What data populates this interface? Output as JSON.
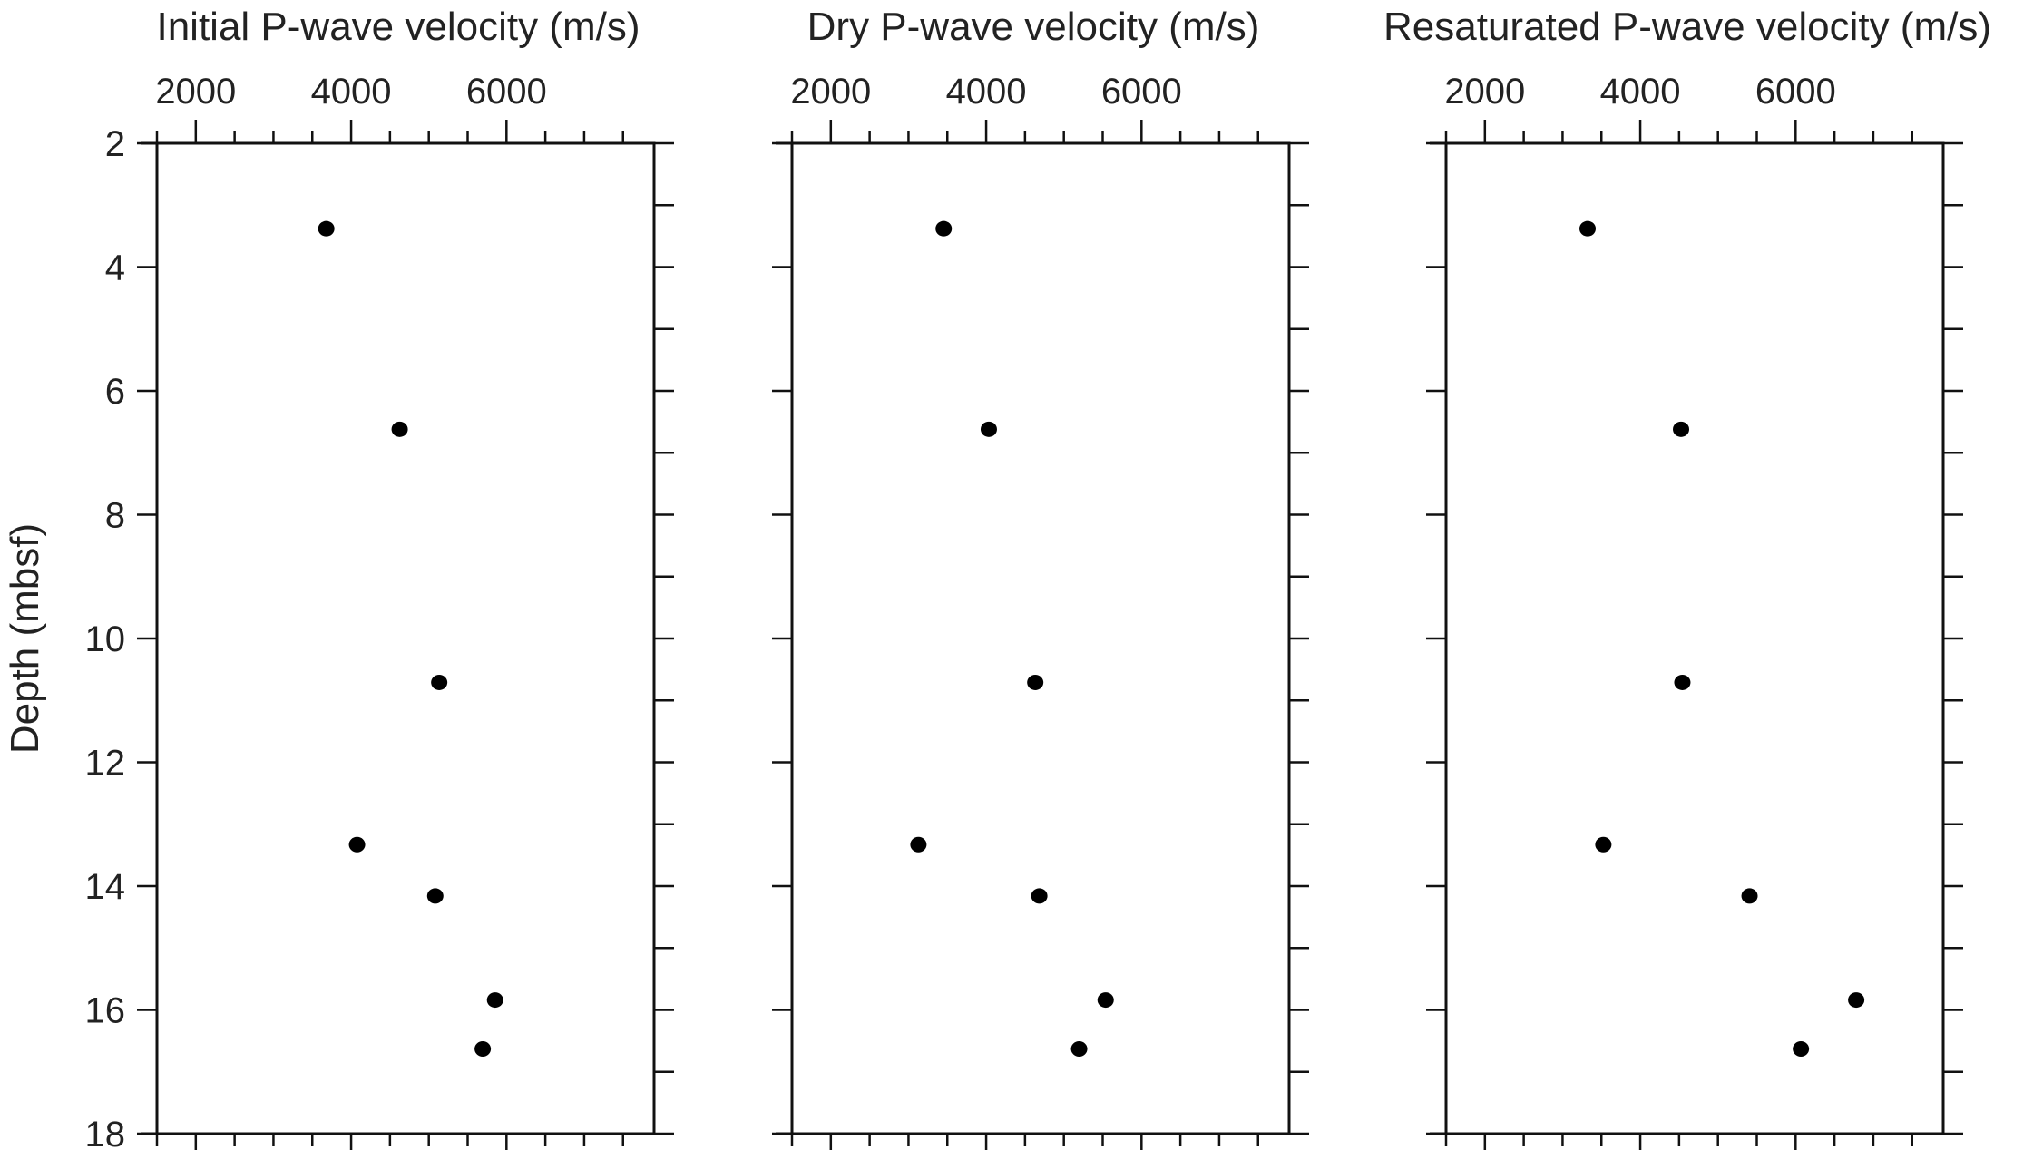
{
  "chart_data": [
    {
      "type": "scatter",
      "title": "Initial P-wave velocity (m/s)",
      "xlabel": "Initial P-wave velocity (m/s)",
      "ylabel": "Depth (mbsf)",
      "xlim": [
        1500,
        7900
      ],
      "ylim": [
        2,
        18
      ],
      "y_inverted": true,
      "x_axis_position": "top",
      "xticks": [
        2000,
        4000,
        6000
      ],
      "yticks": [
        2,
        4,
        6,
        8,
        10,
        12,
        14,
        16,
        18
      ],
      "points": [
        {
          "x": 3680,
          "y": 3.38
        },
        {
          "x": 4625,
          "y": 6.62
        },
        {
          "x": 5134,
          "y": 10.71
        },
        {
          "x": 4076,
          "y": 13.33
        },
        {
          "x": 5083,
          "y": 14.16
        },
        {
          "x": 5853,
          "y": 15.84
        },
        {
          "x": 5694,
          "y": 16.63
        }
      ]
    },
    {
      "type": "scatter",
      "title": "Dry P-wave velocity (m/s)",
      "xlabel": "Dry P-wave velocity (m/s)",
      "xlim": [
        1500,
        7900
      ],
      "ylim": [
        2,
        18
      ],
      "y_inverted": true,
      "x_axis_position": "top",
      "xticks": [
        2000,
        4000,
        6000
      ],
      "points": [
        {
          "x": 3453,
          "y": 3.38
        },
        {
          "x": 4034,
          "y": 6.62
        },
        {
          "x": 4632,
          "y": 10.71
        },
        {
          "x": 3128,
          "y": 13.33
        },
        {
          "x": 4684,
          "y": 14.16
        },
        {
          "x": 5538,
          "y": 15.84
        },
        {
          "x": 5197,
          "y": 16.63
        }
      ]
    },
    {
      "type": "scatter",
      "title": "Resaturated P-wave velocity (m/s)",
      "xlabel": "Resaturated P-wave velocity (m/s)",
      "xlim": [
        1500,
        7900
      ],
      "ylim": [
        2,
        18
      ],
      "y_inverted": true,
      "x_axis_position": "top",
      "xticks": [
        2000,
        4000,
        6000
      ],
      "points": [
        {
          "x": 3322,
          "y": 3.38
        },
        {
          "x": 4525,
          "y": 6.62
        },
        {
          "x": 4542,
          "y": 10.71
        },
        {
          "x": 3525,
          "y": 13.33
        },
        {
          "x": 5407,
          "y": 14.16
        },
        {
          "x": 6780,
          "y": 15.84
        },
        {
          "x": 6068,
          "y": 16.63
        }
      ]
    }
  ]
}
